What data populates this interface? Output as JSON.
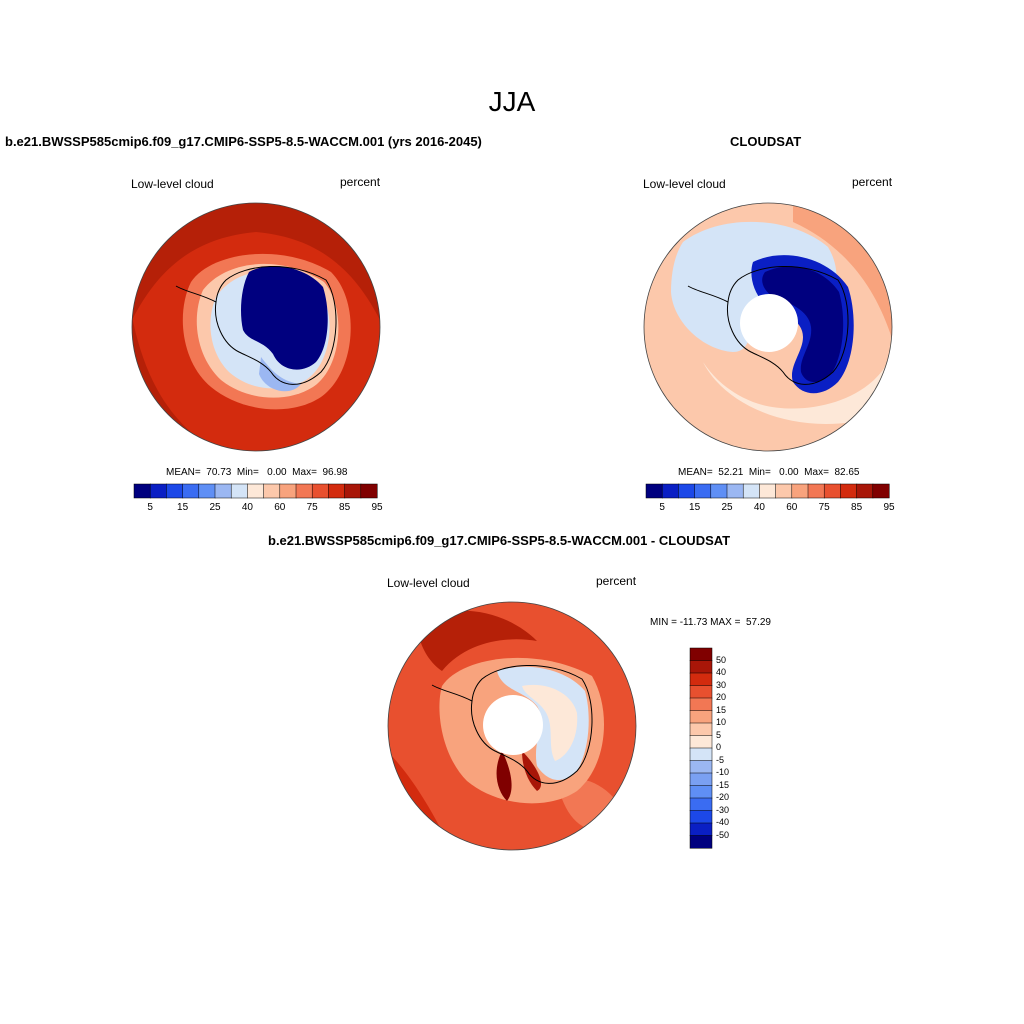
{
  "figure": {
    "title": "JJA"
  },
  "panel_left": {
    "title": "b.e21.BWSSP585cmip6.f09_g17.CMIP6-SSP5-8.5-WACCM.001 (yrs 2016-2045)",
    "variable": "Low-level cloud",
    "units": "percent",
    "stats": "MEAN=  70.73  Min=   0.00  Max=  96.98"
  },
  "panel_right": {
    "title": "CLOUDSAT",
    "variable": "Low-level cloud",
    "units": "percent",
    "stats": "MEAN=  52.21  Min=   0.00  Max=  82.65"
  },
  "panel_diff": {
    "title": "b.e21.BWSSP585cmip6.f09_g17.CMIP6-SSP5-8.5-WACCM.001 - CLOUDSAT",
    "variable": "Low-level cloud",
    "units": "percent",
    "stats": "MIN = -11.73 MAX =  57.29"
  },
  "colorbar_abs": {
    "colors": [
      "#00007f",
      "#0a1fc4",
      "#1c48e8",
      "#3a6cf2",
      "#5f8ff5",
      "#9bb7f2",
      "#d4e4f7",
      "#fde8d8",
      "#fcc8ab",
      "#f8a37d",
      "#f27754",
      "#e8502f",
      "#d32b0e",
      "#a81608",
      "#800000"
    ],
    "tick_labels": [
      "5",
      "15",
      "25",
      "40",
      "60",
      "75",
      "85",
      "95"
    ]
  },
  "colorbar_diff": {
    "colors": [
      "#800000",
      "#a81608",
      "#d32b0e",
      "#e8502f",
      "#f27754",
      "#f8a37d",
      "#fcc8ab",
      "#fde8d8",
      "#d4e4f7",
      "#9bb7f2",
      "#7aa0f2",
      "#5f8ff5",
      "#3a6cf2",
      "#1c48e8",
      "#0a1fc4",
      "#00007f"
    ],
    "tick_labels": [
      "50",
      "40",
      "30",
      "20",
      "15",
      "10",
      "5",
      "0",
      "-5",
      "-10",
      "-15",
      "-20",
      "-30",
      "-40",
      "-50"
    ]
  }
}
